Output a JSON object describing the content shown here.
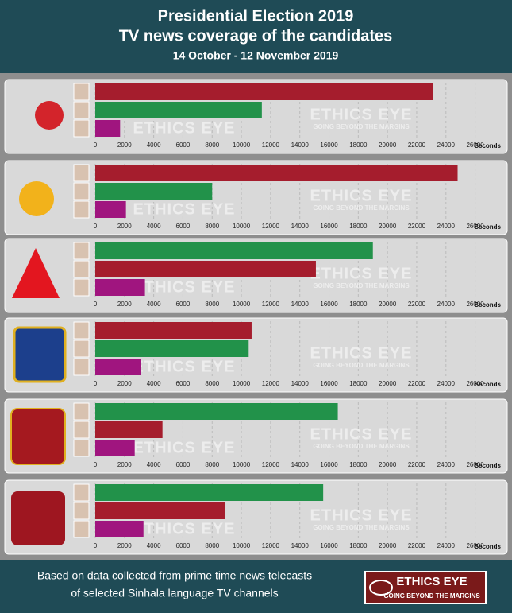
{
  "header": {
    "title": "Presidential Election 2019",
    "subtitle": "TV news coverage of the candidates",
    "dates": "14 October - 12 November 2019"
  },
  "footer": {
    "line1": "Based on data collected from prime time news telecasts",
    "line2": "of selected Sinhala language TV channels"
  },
  "logo": {
    "name": "ETHICS EYE",
    "tagline": "GOING BEYOND THE MARGINS"
  },
  "chart_data": [
    {
      "type": "bar",
      "orientation": "horizontal",
      "values": [
        23100,
        11400,
        1700
      ],
      "colors": [
        "#a51d2d",
        "#22924a",
        "#a0157f"
      ],
      "xlim": [
        0,
        27000
      ],
      "xticks": [
        0,
        2000,
        4000,
        6000,
        8000,
        10000,
        12000,
        14000,
        16000,
        18000,
        20000,
        22000,
        24000,
        26000
      ],
      "x_label": "Seconds",
      "grid": true
    },
    {
      "type": "bar",
      "orientation": "horizontal",
      "values": [
        24800,
        8000,
        2100
      ],
      "colors": [
        "#a51d2d",
        "#22924a",
        "#a0157f"
      ],
      "xlim": [
        0,
        27000
      ],
      "xticks": [
        0,
        2000,
        4000,
        6000,
        8000,
        10000,
        12000,
        14000,
        16000,
        18000,
        20000,
        22000,
        24000,
        26000
      ],
      "x_label": "Seconds",
      "grid": true
    },
    {
      "type": "bar",
      "orientation": "horizontal",
      "values": [
        19000,
        15100,
        3400
      ],
      "colors": [
        "#22924a",
        "#a51d2d",
        "#a0157f"
      ],
      "xlim": [
        0,
        27000
      ],
      "xticks": [
        0,
        2000,
        4000,
        6000,
        8000,
        10000,
        12000,
        14000,
        16000,
        18000,
        20000,
        22000,
        24000,
        26000
      ],
      "x_label": "Seconds",
      "grid": true
    },
    {
      "type": "bar",
      "orientation": "horizontal",
      "values": [
        10700,
        10500,
        3100
      ],
      "colors": [
        "#a51d2d",
        "#22924a",
        "#a0157f"
      ],
      "xlim": [
        0,
        27000
      ],
      "xticks": [
        0,
        2000,
        4000,
        6000,
        8000,
        10000,
        12000,
        14000,
        16000,
        18000,
        20000,
        22000,
        24000,
        26000
      ],
      "x_label": "Seconds",
      "grid": true
    },
    {
      "type": "bar",
      "orientation": "horizontal",
      "values": [
        16600,
        4600,
        2700
      ],
      "colors": [
        "#22924a",
        "#a51d2d",
        "#a0157f"
      ],
      "xlim": [
        0,
        27000
      ],
      "xticks": [
        0,
        2000,
        4000,
        6000,
        8000,
        10000,
        12000,
        14000,
        16000,
        18000,
        20000,
        22000,
        24000,
        26000
      ],
      "x_label": "Seconds",
      "grid": true
    },
    {
      "type": "bar",
      "orientation": "horizontal",
      "values": [
        15600,
        8900,
        3300
      ],
      "colors": [
        "#22924a",
        "#a51d2d",
        "#a0157f"
      ],
      "xlim": [
        0,
        27000
      ],
      "xticks": [
        0,
        2000,
        4000,
        6000,
        8000,
        10000,
        12000,
        14000,
        16000,
        18000,
        20000,
        22000,
        24000,
        26000
      ],
      "x_label": "Seconds",
      "grid": true
    }
  ]
}
